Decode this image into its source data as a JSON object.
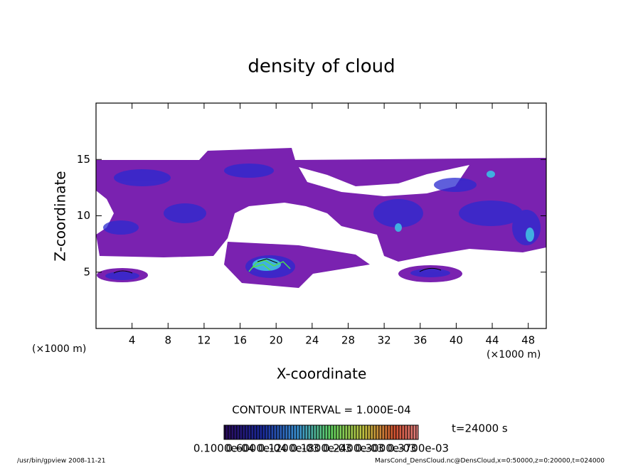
{
  "chart_data": {
    "type": "contour",
    "title": "density of cloud",
    "xlabel": "X-coordinate",
    "ylabel": "Z-coordinate",
    "x_unit": "(×1000 m)",
    "y_unit": "(×1000 m)",
    "xlim": [
      0,
      50
    ],
    "xticks": [
      4,
      8,
      12,
      16,
      20,
      24,
      28,
      32,
      36,
      40,
      44,
      48
    ],
    "ylim": [
      0,
      20
    ],
    "yticks": [
      5,
      10,
      15
    ],
    "contour_interval": "CONTOUR INTERVAL = 1.000E-04",
    "time": "t=24000 s",
    "colorbar_labels": [
      "0.1000e-04",
      "0.6000e-04",
      "0.1200e-03",
      "0.1800e-03",
      "0.2400e-03",
      "0.3000e-03",
      "0.3700e-03"
    ],
    "footer_left": "/usr/bin/gpview   2008-11-21",
    "footer_right": "MarsCond_DensCloud.nc@DensCloud,x=0:50000,z=0:20000,t=024000"
  }
}
